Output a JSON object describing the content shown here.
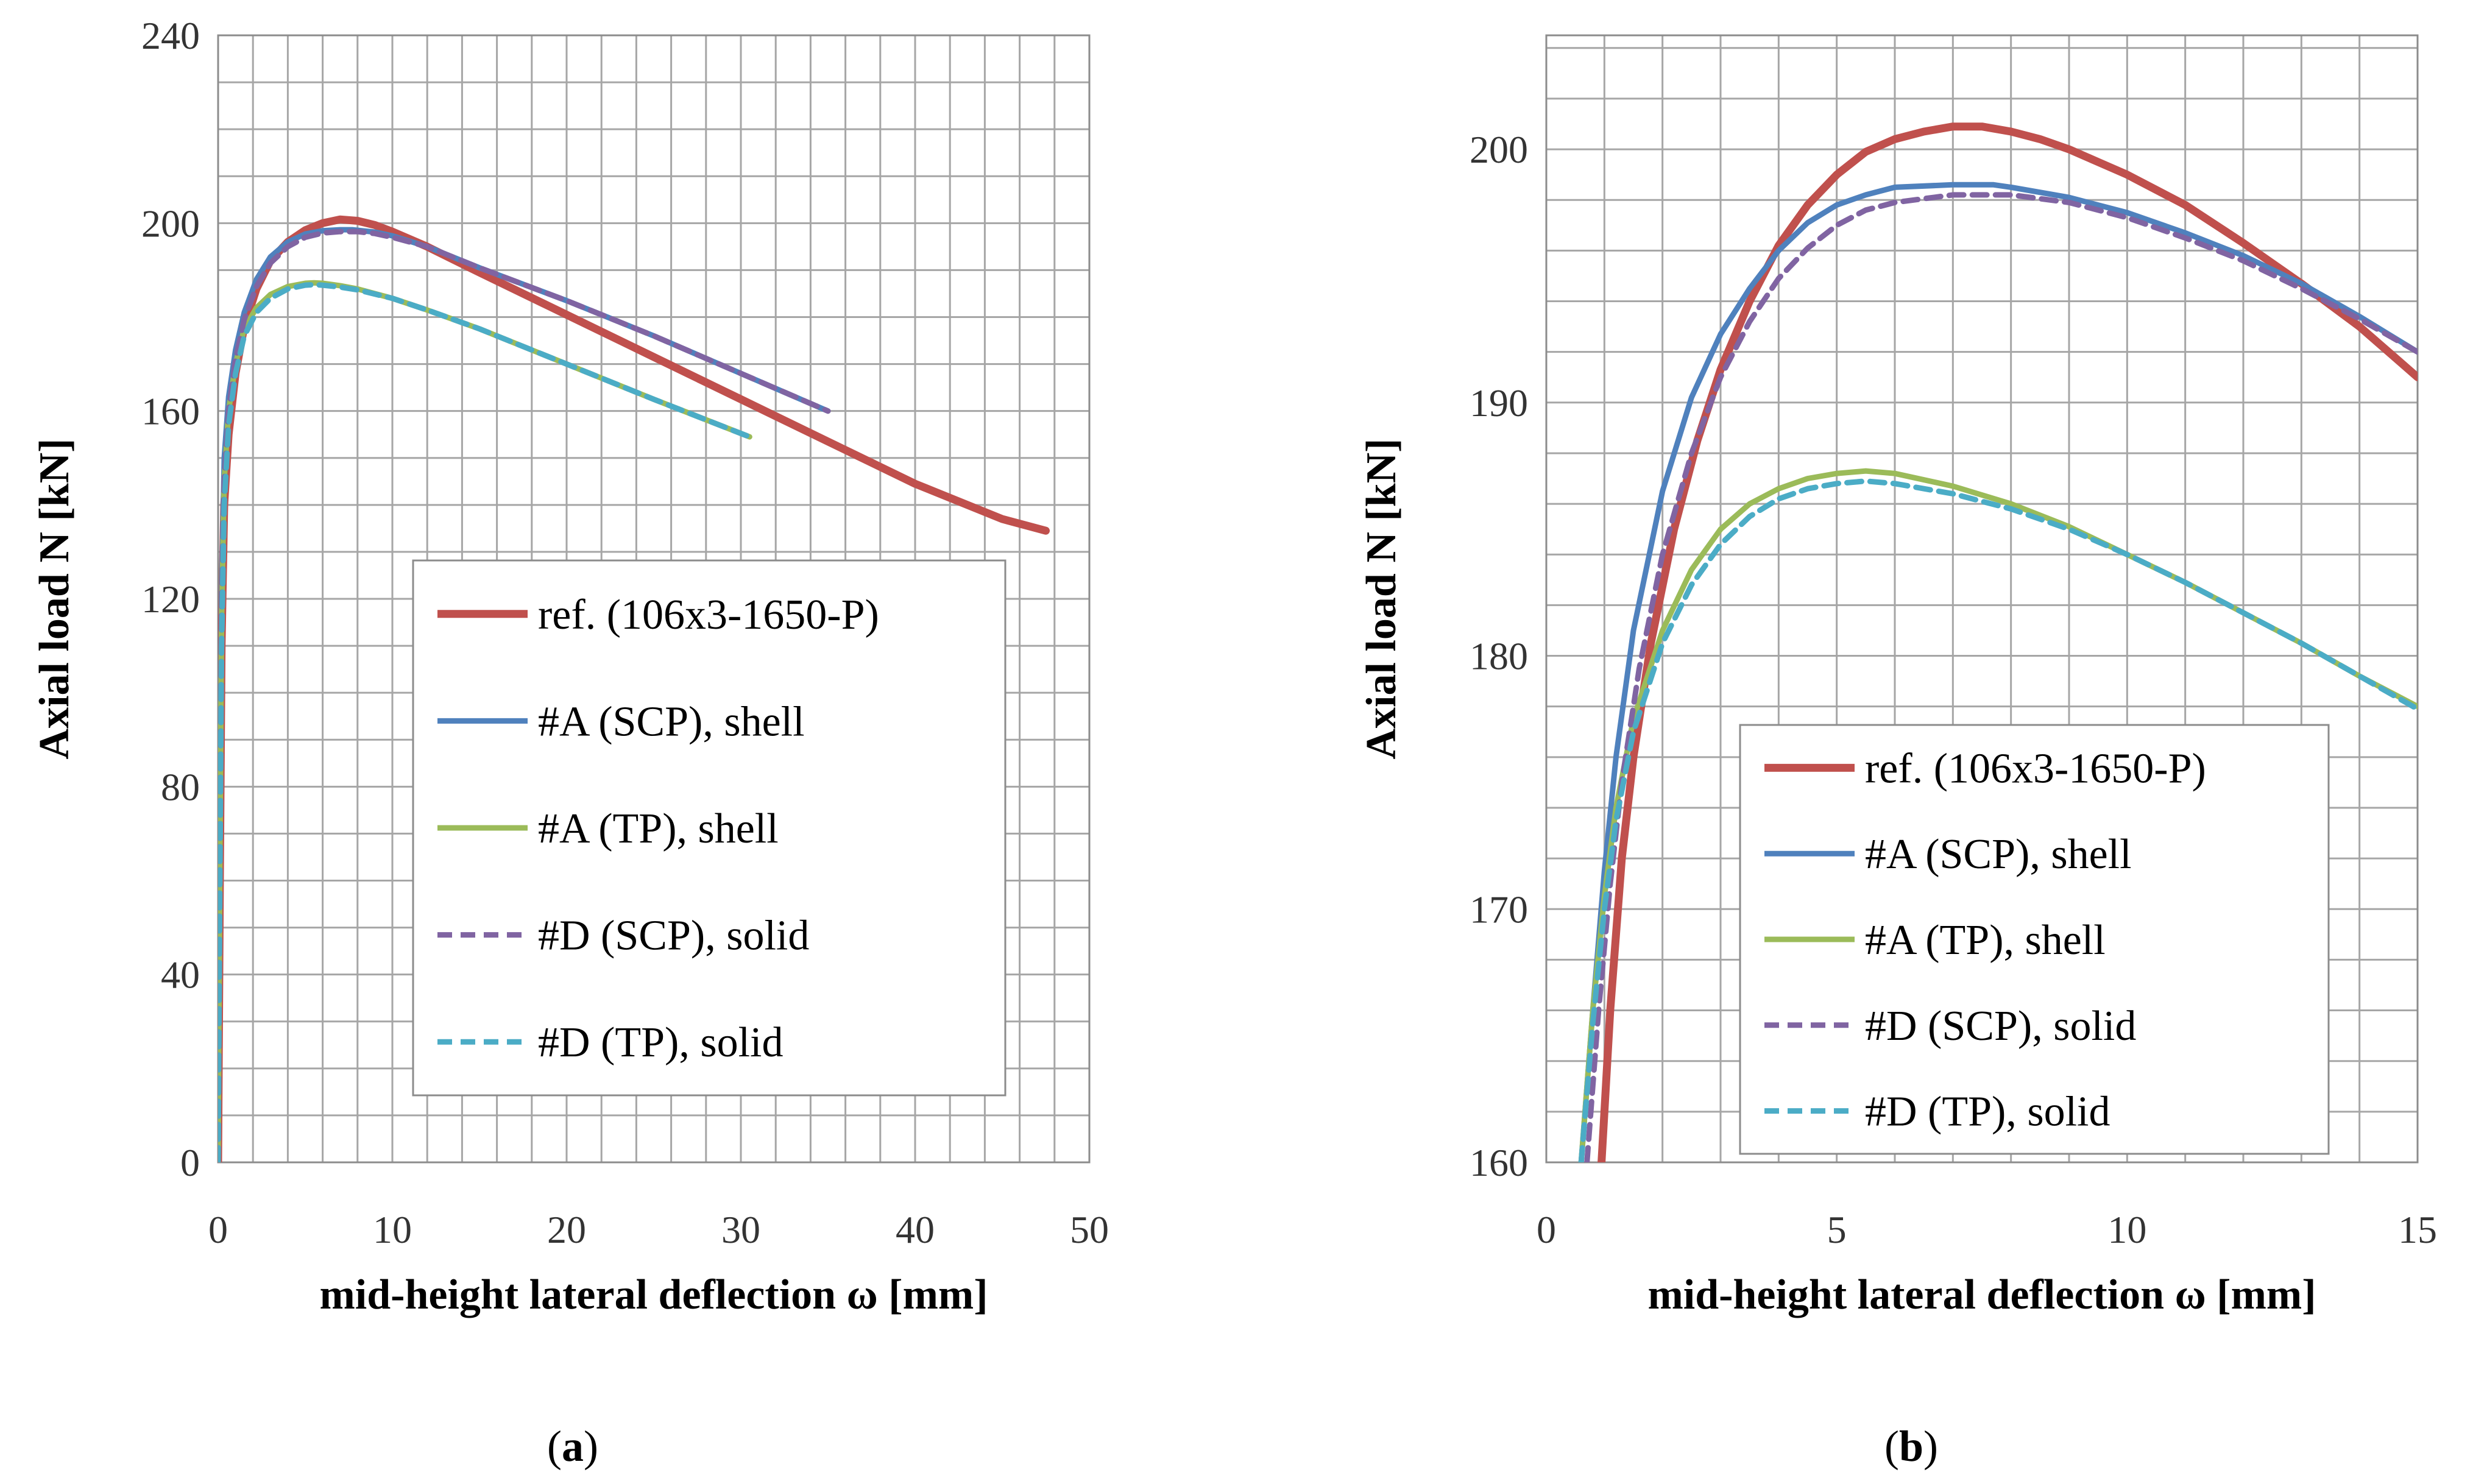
{
  "chart_data": [
    {
      "id": "a",
      "type": "line",
      "panel_label": "a",
      "xlabel": "mid-height lateral deflection ω  [mm]",
      "ylabel": "Axial load N [kN]",
      "xlim": [
        0,
        50
      ],
      "ylim": [
        0,
        240
      ],
      "xticks": [
        0,
        10,
        20,
        30,
        40,
        50
      ],
      "yticks": [
        0,
        40,
        80,
        120,
        160,
        200,
        240
      ],
      "x_minor": 2,
      "y_minor": 10,
      "legend_position": "bottom-right",
      "series": [
        {
          "name": "ref. (106x3-1650-P)",
          "color": "#c0504d",
          "style": "solid",
          "x": [
            0,
            0.1,
            0.2,
            0.35,
            0.6,
            1,
            1.5,
            2.2,
            3,
            4,
            5,
            6,
            7,
            8,
            9,
            10,
            12,
            15,
            20,
            25,
            30,
            35,
            40,
            45,
            47.5
          ],
          "y": [
            0,
            60,
            110,
            140,
            155,
            168,
            178,
            186,
            192,
            196,
            198.5,
            200,
            200.8,
            200.5,
            199.6,
            198.2,
            195,
            189.5,
            180.5,
            171.5,
            162.5,
            153.5,
            144.5,
            137,
            134.5
          ]
        },
        {
          "name": "#A (SCP), shell",
          "color": "#4f81bd",
          "style": "solid",
          "x": [
            0,
            0.1,
            0.2,
            0.35,
            0.6,
            1,
            1.5,
            2.2,
            3,
            4,
            5,
            6,
            7,
            7.7,
            9,
            10,
            12,
            15,
            20,
            25,
            30,
            35
          ],
          "y": [
            0,
            70,
            120,
            150,
            163,
            173,
            181,
            188,
            192.8,
            196,
            197.7,
            198.4,
            198.6,
            198.6,
            198.1,
            197.3,
            195,
            190.5,
            183.5,
            176,
            168,
            160
          ]
        },
        {
          "name": "#A (TP), shell",
          "color": "#9bbb59",
          "style": "solid",
          "x": [
            0,
            0.1,
            0.2,
            0.35,
            0.6,
            1,
            1.5,
            2.2,
            3,
            4,
            5,
            5.5,
            6,
            7,
            8,
            10,
            12,
            15,
            20,
            25,
            30.5
          ],
          "y": [
            0,
            65,
            115,
            145,
            160,
            170,
            177.5,
            182,
            184.8,
            186.5,
            187.2,
            187.3,
            187.2,
            186.7,
            186,
            184,
            181.5,
            177.5,
            170,
            162.5,
            154.5
          ]
        },
        {
          "name": "#D (SCP), solid",
          "color": "#8064a2",
          "style": "dashed",
          "x": [
            0,
            0.1,
            0.2,
            0.35,
            0.6,
            1,
            1.5,
            2.2,
            3,
            4,
            5,
            6,
            7,
            8,
            9,
            10,
            12,
            15,
            20,
            25,
            30,
            35
          ],
          "y": [
            0,
            65,
            115,
            145,
            160,
            171,
            179.5,
            186.5,
            191.5,
            195,
            197,
            197.9,
            198.2,
            198.2,
            197.8,
            197,
            195,
            190.5,
            183.5,
            176,
            168,
            160
          ]
        },
        {
          "name": "#D (TP), solid",
          "color": "#4bacc6",
          "style": "dashed",
          "x": [
            0,
            0.1,
            0.2,
            0.35,
            0.6,
            1,
            1.5,
            2.2,
            3,
            4,
            5,
            5.5,
            6,
            7,
            8,
            10,
            12,
            15,
            20,
            25,
            30.5
          ],
          "y": [
            0,
            60,
            110,
            140,
            157,
            168,
            176,
            181,
            184,
            186,
            186.8,
            186.9,
            186.8,
            186.4,
            185.8,
            184,
            181.5,
            177.5,
            170,
            162.5,
            154.5
          ]
        }
      ]
    },
    {
      "id": "b",
      "type": "line",
      "panel_label": "b",
      "xlabel": "mid-height lateral deflection ω  [mm]",
      "ylabel": "Axial load N [kN]",
      "xlim": [
        0,
        15
      ],
      "ylim": [
        160,
        204.5
      ],
      "xticks": [
        0,
        5,
        10,
        15
      ],
      "yticks": [
        160,
        170,
        180,
        190,
        200
      ],
      "x_minor": 1,
      "y_minor": 2,
      "legend_position": "bottom-right",
      "series": [
        {
          "name": "ref. (106x3-1650-P)",
          "color": "#c0504d",
          "style": "solid",
          "x": [
            0.95,
            1.1,
            1.3,
            1.5,
            1.8,
            2.2,
            2.6,
            3,
            3.5,
            4,
            4.5,
            5,
            5.5,
            6,
            6.5,
            7,
            7.5,
            8,
            8.5,
            9,
            9.5,
            10,
            11,
            12,
            13,
            14,
            15
          ],
          "y": [
            160,
            166,
            172,
            176,
            180.5,
            185,
            188.5,
            191.3,
            194,
            196.2,
            197.8,
            199,
            199.9,
            200.4,
            200.7,
            200.9,
            200.9,
            200.7,
            200.4,
            200,
            199.5,
            199,
            197.8,
            196.3,
            194.7,
            193,
            191
          ]
        },
        {
          "name": "#A (SCP), shell",
          "color": "#4f81bd",
          "style": "solid",
          "x": [
            0.6,
            0.8,
            1,
            1.2,
            1.5,
            2,
            2.5,
            3,
            3.5,
            4,
            4.5,
            5,
            5.5,
            6,
            7,
            7.7,
            8,
            9,
            10,
            11,
            12,
            13,
            14,
            15
          ],
          "y": [
            160,
            166,
            171.5,
            176,
            181,
            186.5,
            190.2,
            192.7,
            194.5,
            196,
            197.1,
            197.8,
            198.2,
            198.5,
            198.6,
            198.6,
            198.5,
            198.1,
            197.5,
            196.7,
            195.8,
            194.7,
            193.4,
            192
          ]
        },
        {
          "name": "#A (TP), shell",
          "color": "#9bbb59",
          "style": "solid",
          "x": [
            0.6,
            0.8,
            1,
            1.2,
            1.5,
            2,
            2.5,
            3,
            3.5,
            4,
            4.5,
            5,
            5.5,
            6,
            7,
            8,
            9,
            10,
            11,
            12,
            13,
            14,
            15
          ],
          "y": [
            160,
            166,
            170.5,
            174,
            177.5,
            181,
            183.4,
            185,
            186,
            186.6,
            187,
            187.2,
            187.3,
            187.2,
            186.7,
            186,
            185.1,
            184,
            182.9,
            181.7,
            180.5,
            179.2,
            178
          ]
        },
        {
          "name": "#D (SCP), solid",
          "color": "#8064a2",
          "style": "dashed",
          "x": [
            0.7,
            0.9,
            1.1,
            1.3,
            1.6,
            2,
            2.5,
            3,
            3.5,
            4,
            4.5,
            5,
            5.5,
            6,
            7,
            8,
            9,
            10,
            11,
            12,
            13,
            14,
            15
          ],
          "y": [
            160,
            166,
            171,
            175,
            179.5,
            184,
            188,
            191,
            193.2,
            194.9,
            196.1,
            197,
            197.6,
            197.9,
            198.2,
            198.2,
            197.9,
            197.3,
            196.5,
            195.6,
            194.5,
            193.3,
            192
          ]
        },
        {
          "name": "#D (TP), solid",
          "color": "#4bacc6",
          "style": "dashed",
          "x": [
            0.6,
            0.8,
            1,
            1.2,
            1.5,
            2,
            2.5,
            3,
            3.5,
            4,
            4.5,
            5,
            5.5,
            6,
            7,
            8,
            9,
            10,
            11,
            12,
            13,
            14,
            15
          ],
          "y": [
            160,
            165.5,
            170,
            173.5,
            177,
            180.5,
            182.8,
            184.4,
            185.5,
            186.2,
            186.6,
            186.8,
            186.9,
            186.8,
            186.4,
            185.8,
            185,
            184,
            182.9,
            181.7,
            180.5,
            179.2,
            177.9
          ]
        }
      ]
    }
  ]
}
